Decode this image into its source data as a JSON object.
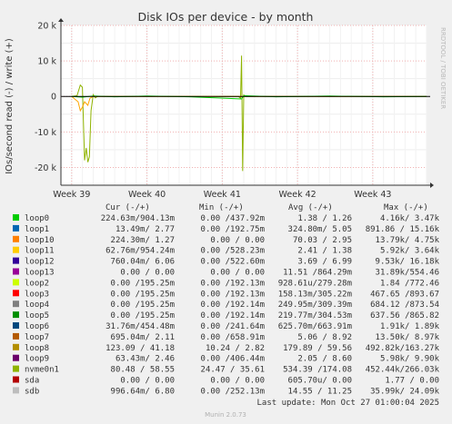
{
  "chart_data": {
    "type": "line",
    "title": "Disk IOs per device - by month",
    "ylabel": "IOs/second read (-) / write (+)",
    "watermark": "RRDTOOL / TOBI OETIKER",
    "ylim": [
      -25000,
      20000
    ],
    "yticks": [
      {
        "value": 20000,
        "label": "20 k"
      },
      {
        "value": 10000,
        "label": "10 k"
      },
      {
        "value": 0,
        "label": "0"
      },
      {
        "value": -10000,
        "label": "-10 k"
      },
      {
        "value": -20000,
        "label": "-20 k"
      }
    ],
    "xlim_days": [
      0,
      34
    ],
    "xticks": [
      {
        "day": 1,
        "label": "Week 39"
      },
      {
        "day": 8,
        "label": "Week 40"
      },
      {
        "day": 15,
        "label": "Week 41"
      },
      {
        "day": 22,
        "label": "Week 42"
      },
      {
        "day": 29,
        "label": "Week 43"
      }
    ],
    "series": [
      {
        "name": "nvme0n1",
        "color": "#8FB300",
        "points": [
          [
            1.0,
            0
          ],
          [
            1.5,
            200
          ],
          [
            1.8,
            3200
          ],
          [
            2.0,
            2600
          ],
          [
            2.2,
            -18000
          ],
          [
            2.35,
            -14500
          ],
          [
            2.5,
            -18500
          ],
          [
            2.65,
            -17000
          ],
          [
            2.8,
            -4000
          ],
          [
            3.0,
            500
          ],
          [
            3.2,
            -400
          ],
          [
            3.4,
            0
          ],
          [
            16.5,
            0
          ],
          [
            16.7,
            -500
          ],
          [
            16.8,
            11500
          ],
          [
            16.9,
            -21000
          ],
          [
            17.0,
            400
          ],
          [
            17.2,
            0
          ],
          [
            34,
            0
          ]
        ]
      },
      {
        "name": "loop11",
        "color": "#FFA500",
        "points": [
          [
            1.0,
            0
          ],
          [
            1.6,
            -1500
          ],
          [
            1.8,
            -4000
          ],
          [
            2.0,
            -3000
          ],
          [
            2.2,
            -1500
          ],
          [
            2.5,
            -2500
          ],
          [
            2.7,
            -500
          ],
          [
            3.0,
            0
          ],
          [
            34,
            0
          ]
        ]
      },
      {
        "name": "loop0",
        "color": "#00CC00",
        "points": [
          [
            1.0,
            0
          ],
          [
            2.0,
            -200
          ],
          [
            3.0,
            100
          ],
          [
            5.0,
            -100
          ],
          [
            8.0,
            100
          ],
          [
            12.0,
            -100
          ],
          [
            16.8,
            -700
          ],
          [
            17.0,
            200
          ],
          [
            20.0,
            -100
          ],
          [
            25.0,
            100
          ],
          [
            30.0,
            -100
          ],
          [
            34,
            0
          ]
        ]
      }
    ],
    "legend_header": {
      "cur": "Cur (-/+)",
      "min": "Min (-/+)",
      "avg": "Avg (-/+)",
      "max": "Max (-/+)"
    },
    "legend": [
      {
        "name": "loop0",
        "color": "#00CC00",
        "cur": "224.63m/904.13m",
        "min": "0.00 /437.92m",
        "avg": "1.38 / 1.26",
        "max": "4.16k/ 3.47k"
      },
      {
        "name": "loop1",
        "color": "#0066B3",
        "cur": "13.49m/ 2.77",
        "min": "0.00 /192.75m",
        "avg": "324.80m/ 5.05",
        "max": "891.86 / 15.16k"
      },
      {
        "name": "loop10",
        "color": "#FF8000",
        "cur": "224.30m/ 1.27",
        "min": "0.00 / 0.00",
        "avg": "70.03 / 2.95",
        "max": "13.79k/ 4.75k"
      },
      {
        "name": "loop11",
        "color": "#FFCC00",
        "cur": "62.76m/954.24m",
        "min": "0.00 /528.23m",
        "avg": "2.41 / 1.38",
        "max": "5.92k/ 3.64k"
      },
      {
        "name": "loop12",
        "color": "#330099",
        "cur": "760.04m/ 6.06",
        "min": "0.00 /522.60m",
        "avg": "3.69 / 6.99",
        "max": "9.53k/ 16.18k"
      },
      {
        "name": "loop13",
        "color": "#990099",
        "cur": "0.00 / 0.00",
        "min": "0.00 / 0.00",
        "avg": "11.51 /864.29m",
        "max": "31.89k/554.46"
      },
      {
        "name": "loop2",
        "color": "#CCFF00",
        "cur": "0.00 /195.25m",
        "min": "0.00 /192.13m",
        "avg": "928.61u/279.28m",
        "max": "1.84 /772.46"
      },
      {
        "name": "loop3",
        "color": "#FF0000",
        "cur": "0.00 /195.25m",
        "min": "0.00 /192.13m",
        "avg": "158.13m/305.22m",
        "max": "467.65 /893.67"
      },
      {
        "name": "loop4",
        "color": "#808080",
        "cur": "0.00 /195.25m",
        "min": "0.00 /192.14m",
        "avg": "249.95m/309.39m",
        "max": "684.12 /873.54"
      },
      {
        "name": "loop5",
        "color": "#008F00",
        "cur": "0.00 /195.25m",
        "min": "0.00 /192.14m",
        "avg": "219.77m/304.53m",
        "max": "637.56 /865.82"
      },
      {
        "name": "loop6",
        "color": "#00487D",
        "cur": "31.76m/454.48m",
        "min": "0.00 /241.64m",
        "avg": "625.70m/663.91m",
        "max": "1.91k/ 1.89k"
      },
      {
        "name": "loop7",
        "color": "#B35A00",
        "cur": "695.04m/ 2.11",
        "min": "0.00 /658.91m",
        "avg": "5.06 / 8.92",
        "max": "13.50k/ 8.97k"
      },
      {
        "name": "loop8",
        "color": "#B38F00",
        "cur": "123.09 / 41.18",
        "min": "10.24 / 2.82",
        "avg": "179.89 / 59.56",
        "max": "492.82k/163.27k"
      },
      {
        "name": "loop9",
        "color": "#6B006B",
        "cur": "63.43m/ 2.46",
        "min": "0.00 /406.44m",
        "avg": "2.05 / 8.60",
        "max": "5.98k/ 9.90k"
      },
      {
        "name": "nvme0n1",
        "color": "#8FB300",
        "cur": "80.48 / 58.55",
        "min": "24.47 / 35.61",
        "avg": "534.39 /174.08",
        "max": "452.44k/266.03k"
      },
      {
        "name": "sda",
        "color": "#B30000",
        "cur": "0.00 / 0.00",
        "min": "0.00 / 0.00",
        "avg": "605.70u/ 0.00",
        "max": "1.77 / 0.00"
      },
      {
        "name": "sdb",
        "color": "#BEBEBE",
        "cur": "996.64m/ 6.80",
        "min": "0.00 /252.13m",
        "avg": "14.55 / 11.25",
        "max": "35.99k/ 24.09k"
      }
    ],
    "last_update": "Last update: Mon Oct 27 01:00:04 2025",
    "footer": "Munin 2.0.73"
  }
}
